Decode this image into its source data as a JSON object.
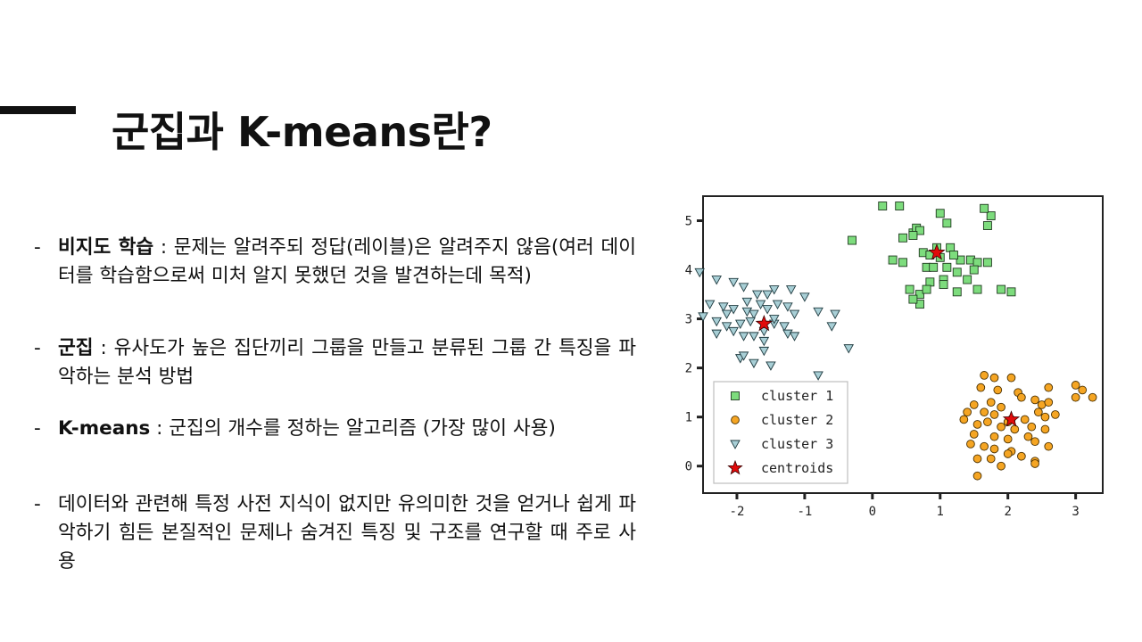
{
  "slide": {
    "title": "군집과 K-means란?"
  },
  "bullets": [
    {
      "term": "비지도 학습",
      "text": " : 문제는 알려주되 정답(레이블)은 알려주지 않음(여러 데이터를 학습함으로써 미처 알지 못했던 것을 발견하는데 목적)"
    },
    {
      "term": "군집",
      "text": " : 유사도가 높은 집단끼리 그룹을 만들고 분류된 그룹 간 특징을 파악하는 분석 방법"
    },
    {
      "term": "K-means",
      "text": " : 군집의 개수를 정하는 알고리즘 (가장 많이 사용)"
    },
    {
      "term": "",
      "text": "데이터와 관련해 특정 사전 지식이 없지만 유의미한 것을 얻거나 쉽게 파 악하기 힘든 본질적인 문제나 숨겨진 특징 및 구조를 연구할 때 주로 사용"
    }
  ],
  "chart_data": {
    "type": "scatter",
    "xlim": [
      -2.5,
      3.4
    ],
    "ylim": [
      -0.55,
      5.5
    ],
    "xticks": [
      -2,
      -1,
      0,
      1,
      2,
      3
    ],
    "yticks": [
      0,
      1,
      2,
      3,
      4,
      5
    ],
    "legend_position": "bottom-left",
    "series": [
      {
        "name": "cluster 1",
        "marker": "square",
        "color": "#7ddc7d",
        "points": [
          [
            0.15,
            5.3
          ],
          [
            0.4,
            5.3
          ],
          [
            0.6,
            4.75
          ],
          [
            0.65,
            4.85
          ],
          [
            0.45,
            4.65
          ],
          [
            0.3,
            4.2
          ],
          [
            0.45,
            4.15
          ],
          [
            0.75,
            4.35
          ],
          [
            0.95,
            4.45
          ],
          [
            1.0,
            5.15
          ],
          [
            1.1,
            4.95
          ],
          [
            1.15,
            4.45
          ],
          [
            1.3,
            4.2
          ],
          [
            1.45,
            4.2
          ],
          [
            1.55,
            4.15
          ],
          [
            1.7,
            4.15
          ],
          [
            0.8,
            4.05
          ],
          [
            0.9,
            4.05
          ],
          [
            1.1,
            4.05
          ],
          [
            1.25,
            3.95
          ],
          [
            1.05,
            3.8
          ],
          [
            1.4,
            3.8
          ],
          [
            1.55,
            3.6
          ],
          [
            0.85,
            3.75
          ],
          [
            0.7,
            3.5
          ],
          [
            0.7,
            3.3
          ],
          [
            0.55,
            3.6
          ],
          [
            0.6,
            3.4
          ],
          [
            0.8,
            3.6
          ],
          [
            1.05,
            3.7
          ],
          [
            1.25,
            3.55
          ],
          [
            0.85,
            4.3
          ],
          [
            1.0,
            4.25
          ],
          [
            1.2,
            4.3
          ],
          [
            1.5,
            4.0
          ],
          [
            1.7,
            4.9
          ],
          [
            1.75,
            5.1
          ],
          [
            1.65,
            5.25
          ],
          [
            1.9,
            3.6
          ],
          [
            2.05,
            3.55
          ],
          [
            -0.3,
            4.6
          ],
          [
            0.7,
            4.8
          ],
          [
            0.6,
            4.7
          ]
        ]
      },
      {
        "name": "cluster 2",
        "marker": "circle",
        "color": "#f5a523",
        "points": [
          [
            1.65,
            1.85
          ],
          [
            1.8,
            1.8
          ],
          [
            2.05,
            1.8
          ],
          [
            1.6,
            1.6
          ],
          [
            1.85,
            1.55
          ],
          [
            2.15,
            1.5
          ],
          [
            1.5,
            1.25
          ],
          [
            1.75,
            1.3
          ],
          [
            1.9,
            1.2
          ],
          [
            2.2,
            1.4
          ],
          [
            2.4,
            1.35
          ],
          [
            2.5,
            1.25
          ],
          [
            2.6,
            1.3
          ],
          [
            1.4,
            1.1
          ],
          [
            1.65,
            1.1
          ],
          [
            1.8,
            1.05
          ],
          [
            2.0,
            0.9
          ],
          [
            2.25,
            0.95
          ],
          [
            2.45,
            1.1
          ],
          [
            2.55,
            1.0
          ],
          [
            2.7,
            1.05
          ],
          [
            1.35,
            0.95
          ],
          [
            1.55,
            0.85
          ],
          [
            1.7,
            0.9
          ],
          [
            1.9,
            0.8
          ],
          [
            2.1,
            0.75
          ],
          [
            2.35,
            0.8
          ],
          [
            2.55,
            0.75
          ],
          [
            1.5,
            0.65
          ],
          [
            1.8,
            0.6
          ],
          [
            2.0,
            0.55
          ],
          [
            2.3,
            0.6
          ],
          [
            1.45,
            0.45
          ],
          [
            1.65,
            0.4
          ],
          [
            1.8,
            0.35
          ],
          [
            2.05,
            0.3
          ],
          [
            2.4,
            0.5
          ],
          [
            2.6,
            0.4
          ],
          [
            1.55,
            0.15
          ],
          [
            1.75,
            0.15
          ],
          [
            2.0,
            0.25
          ],
          [
            2.2,
            0.2
          ],
          [
            2.4,
            0.1
          ],
          [
            1.9,
            0.0
          ],
          [
            1.55,
            -0.2
          ],
          [
            2.4,
            0.05
          ],
          [
            2.05,
            0.95
          ],
          [
            2.6,
            1.6
          ],
          [
            3.0,
            1.65
          ],
          [
            3.1,
            1.55
          ],
          [
            3.25,
            1.4
          ],
          [
            3.0,
            1.4
          ]
        ]
      },
      {
        "name": "cluster 3",
        "marker": "triangle",
        "color": "#a8cfd6",
        "points": [
          [
            -2.55,
            3.95
          ],
          [
            -2.3,
            3.8
          ],
          [
            -2.05,
            3.75
          ],
          [
            -1.9,
            3.65
          ],
          [
            -1.7,
            3.5
          ],
          [
            -1.55,
            3.5
          ],
          [
            -1.45,
            3.6
          ],
          [
            -1.2,
            3.6
          ],
          [
            -1.0,
            3.45
          ],
          [
            -2.4,
            3.3
          ],
          [
            -2.2,
            3.25
          ],
          [
            -2.05,
            3.2
          ],
          [
            -1.85,
            3.15
          ],
          [
            -1.75,
            3.1
          ],
          [
            -1.55,
            3.2
          ],
          [
            -1.4,
            3.3
          ],
          [
            -1.25,
            3.25
          ],
          [
            -1.15,
            3.1
          ],
          [
            -2.5,
            3.05
          ],
          [
            -2.3,
            2.95
          ],
          [
            -2.15,
            2.85
          ],
          [
            -1.95,
            2.9
          ],
          [
            -1.8,
            2.95
          ],
          [
            -1.6,
            2.75
          ],
          [
            -1.45,
            2.9
          ],
          [
            -1.3,
            2.85
          ],
          [
            -2.3,
            2.7
          ],
          [
            -2.05,
            2.75
          ],
          [
            -1.9,
            2.65
          ],
          [
            -1.75,
            2.65
          ],
          [
            -1.6,
            2.55
          ],
          [
            -1.25,
            2.7
          ],
          [
            -1.15,
            2.65
          ],
          [
            -0.8,
            3.15
          ],
          [
            -0.55,
            3.1
          ],
          [
            -0.6,
            2.85
          ],
          [
            -0.35,
            2.4
          ],
          [
            -1.95,
            2.2
          ],
          [
            -1.9,
            2.25
          ],
          [
            -1.75,
            2.1
          ],
          [
            -1.6,
            2.35
          ],
          [
            -1.5,
            2.05
          ],
          [
            -0.8,
            1.85
          ],
          [
            -1.45,
            3.0
          ],
          [
            -1.65,
            3.3
          ],
          [
            -1.85,
            3.35
          ],
          [
            -2.15,
            3.1
          ]
        ]
      }
    ],
    "centroids": {
      "name": "centroids",
      "marker": "star",
      "color": "#e10b0b",
      "points": [
        [
          0.95,
          4.35
        ],
        [
          2.05,
          0.95
        ],
        [
          -1.6,
          2.9
        ]
      ]
    }
  }
}
